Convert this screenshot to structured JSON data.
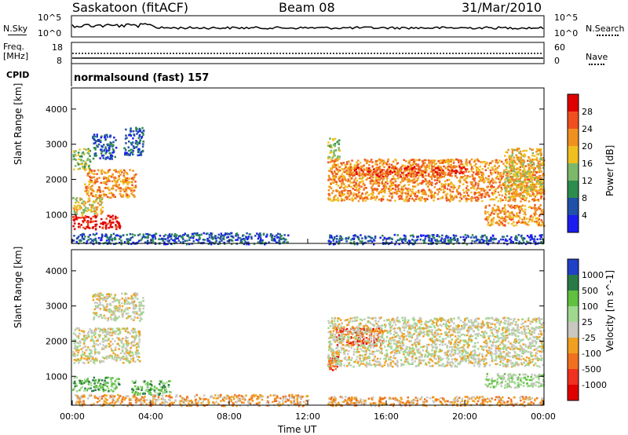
{
  "header": {
    "station": "Saskatoon (fitACF)",
    "beam": "Beam 08",
    "date": "31/Mar/2010"
  },
  "top_panels": {
    "nsky_label": "N.Sky",
    "nsky_ticks": [
      "10^5",
      "10^0"
    ],
    "nsearch_label": "N.Search",
    "nsearch_ticks": [
      "10^5",
      "10^0"
    ],
    "freq_label_1": "Freq.",
    "freq_label_2": "[MHz]",
    "freq_ticks": [
      "18",
      "8"
    ],
    "nave_label": "Nave",
    "nave_ticks": [
      "60",
      "0"
    ],
    "cpid_label": "CPID",
    "cpid_text": "normalsound (fast) 157"
  },
  "chart_data": [
    {
      "type": "heatmap",
      "name": "power-panel",
      "ylabel": "Slant Range [km]",
      "yticks": [
        1000,
        2000,
        3000,
        4000
      ],
      "ylim": [
        180,
        4600
      ],
      "xlim_hours": [
        0,
        24
      ],
      "colorbar_label": "Power [dB]",
      "colorbar_ticks": [
        "4",
        "8",
        "12",
        "16",
        "20",
        "24",
        "28"
      ],
      "colorbar_colors": [
        "#1c1cf0",
        "#2050a8",
        "#2e8c4c",
        "#7cb86a",
        "#f0c020",
        "#f09020",
        "#f05020",
        "#e00000"
      ],
      "echo_regions": [
        {
          "t": [
            0.0,
            2.4
          ],
          "r": [
            600,
            1000
          ],
          "level": 7
        },
        {
          "t": [
            0.0,
            1.6
          ],
          "r": [
            1000,
            1500
          ],
          "level": 4
        },
        {
          "t": [
            0.6,
            3.2
          ],
          "r": [
            1500,
            2300
          ],
          "level": 5
        },
        {
          "t": [
            0.0,
            0.9
          ],
          "r": [
            2300,
            2900
          ],
          "level": 3
        },
        {
          "t": [
            1.0,
            2.2
          ],
          "r": [
            2600,
            3300
          ],
          "level": 1
        },
        {
          "t": [
            2.6,
            3.6
          ],
          "r": [
            2700,
            3500
          ],
          "level": 1
        },
        {
          "t": [
            0.0,
            11.0
          ],
          "r": [
            180,
            500
          ],
          "level": 1
        },
        {
          "t": [
            13.0,
            24.0
          ],
          "r": [
            1400,
            2600
          ],
          "level": 5
        },
        {
          "t": [
            14.0,
            20.0
          ],
          "r": [
            2100,
            2400
          ],
          "level": 6
        },
        {
          "t": [
            13.0,
            13.6
          ],
          "r": [
            2600,
            3200
          ],
          "level": 3
        },
        {
          "t": [
            22.0,
            24.0
          ],
          "r": [
            1500,
            2900
          ],
          "level": 4
        },
        {
          "t": [
            21.0,
            24.0
          ],
          "r": [
            700,
            1300
          ],
          "level": 5
        },
        {
          "t": [
            13.0,
            24.0
          ],
          "r": [
            180,
            450
          ],
          "level": 1
        }
      ]
    },
    {
      "type": "heatmap",
      "name": "velocity-panel",
      "ylabel": "Slant Range [km]",
      "yticks": [
        1000,
        2000,
        3000,
        4000
      ],
      "ylim": [
        180,
        4600
      ],
      "xlim_hours": [
        0,
        24
      ],
      "xticks": [
        "00:00",
        "04:00",
        "08:00",
        "12:00",
        "16:00",
        "20:00",
        "00:00"
      ],
      "xlabel": "Time UT",
      "colorbar_label": "Velocity [m s^-1]",
      "colorbar_ticks": [
        "1000",
        "500",
        "100",
        "25",
        "-25",
        "-100",
        "-500",
        "-1000"
      ],
      "colorbar_colors": [
        "#2040c8",
        "#2a7a48",
        "#60c040",
        "#a0d890",
        "#c8c8c0",
        "#f0a020",
        "#f07020",
        "#f03020",
        "#e00000"
      ],
      "echo_regions": [
        {
          "t": [
            0.0,
            2.4
          ],
          "r": [
            600,
            1000
          ],
          "level": 2
        },
        {
          "t": [
            3.0,
            5.0
          ],
          "r": [
            500,
            900
          ],
          "level": 2
        },
        {
          "t": [
            0.0,
            3.4
          ],
          "r": [
            1400,
            2400
          ],
          "level": 4
        },
        {
          "t": [
            1.0,
            3.6
          ],
          "r": [
            2600,
            3400
          ],
          "level": 4
        },
        {
          "t": [
            0.0,
            12.0
          ],
          "r": [
            180,
            500
          ],
          "level": 5
        },
        {
          "t": [
            13.4,
            15.8
          ],
          "r": [
            1900,
            2400
          ],
          "level": 7
        },
        {
          "t": [
            13.0,
            13.7
          ],
          "r": [
            1200,
            1600
          ],
          "level": 7
        },
        {
          "t": [
            13.0,
            24.0
          ],
          "r": [
            1300,
            2700
          ],
          "level": 4
        },
        {
          "t": [
            21.0,
            24.0
          ],
          "r": [
            700,
            1100
          ],
          "level": 3
        },
        {
          "t": [
            13.0,
            24.0
          ],
          "r": [
            180,
            450
          ],
          "level": 5
        }
      ]
    }
  ]
}
